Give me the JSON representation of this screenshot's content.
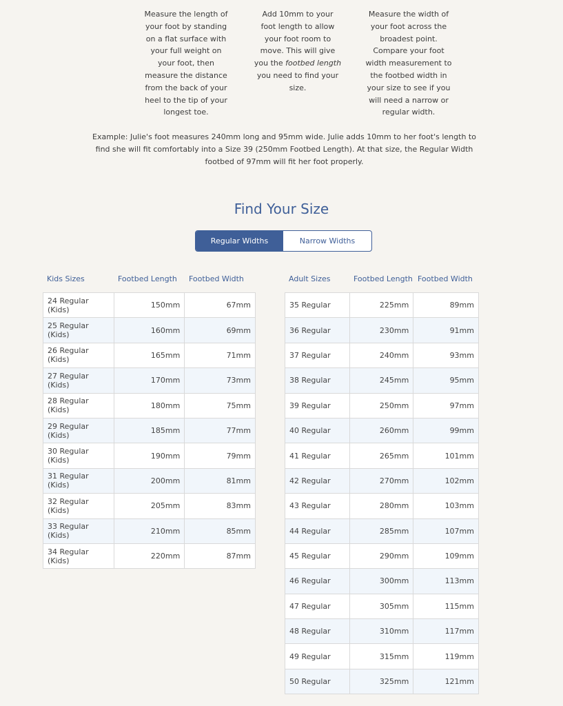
{
  "steps": [
    {
      "text": "Measure the length of your foot by standing on a flat surface with your full weight on your foot, then measure the distance from the back of your heel to the tip of your longest toe."
    },
    {
      "pre": "Add 10mm to your foot length to allow your foot room to move. This will give you the ",
      "em": "footbed length",
      "post": " you need to find your size."
    },
    {
      "text": "Measure the width of your foot across the broadest point. Compare your foot width measurement to the footbed width in your size to see if you will need a narrow or regular width."
    }
  ],
  "example": "Example: Julie's foot measures 240mm long and 95mm wide. Julie adds 10mm to her foot's length to find she will fit comfortably into a Size 39 (250mm Footbed Length). At that size, the Regular Width footbed of 97mm will fit her foot properly.",
  "title": "Find Your Size",
  "toggle": {
    "regular": "Regular Widths",
    "narrow": "Narrow Widths",
    "selected": "Regular Widths"
  },
  "accent": "#3f5f98",
  "kids": {
    "headers": [
      "Kids Sizes",
      "Footbed Length",
      "Footbed Width"
    ],
    "rows": [
      [
        "24 Regular (Kids)",
        "150mm",
        "67mm"
      ],
      [
        "25 Regular (Kids)",
        "160mm",
        "69mm"
      ],
      [
        "26 Regular (Kids)",
        "165mm",
        "71mm"
      ],
      [
        "27 Regular (Kids)",
        "170mm",
        "73mm"
      ],
      [
        "28 Regular (Kids)",
        "180mm",
        "75mm"
      ],
      [
        "29 Regular (Kids)",
        "185mm",
        "77mm"
      ],
      [
        "30 Regular (Kids)",
        "190mm",
        "79mm"
      ],
      [
        "31 Regular (Kids)",
        "200mm",
        "81mm"
      ],
      [
        "32 Regular (Kids)",
        "205mm",
        "83mm"
      ],
      [
        "33 Regular (Kids)",
        "210mm",
        "85mm"
      ],
      [
        "34 Regular (Kids)",
        "220mm",
        "87mm"
      ]
    ]
  },
  "adult": {
    "headers": [
      "Adult Sizes",
      "Footbed Length",
      "Footbed Width"
    ],
    "rows": [
      [
        "35 Regular",
        "225mm",
        "89mm"
      ],
      [
        "36 Regular",
        "230mm",
        "91mm"
      ],
      [
        "37 Regular",
        "240mm",
        "93mm"
      ],
      [
        "38 Regular",
        "245mm",
        "95mm"
      ],
      [
        "39 Regular",
        "250mm",
        "97mm"
      ],
      [
        "40 Regular",
        "260mm",
        "99mm"
      ],
      [
        "41 Regular",
        "265mm",
        "101mm"
      ],
      [
        "42 Regular",
        "270mm",
        "102mm"
      ],
      [
        "43 Regular",
        "280mm",
        "103mm"
      ],
      [
        "44 Regular",
        "285mm",
        "107mm"
      ],
      [
        "45 Regular",
        "290mm",
        "109mm"
      ],
      [
        "46 Regular",
        "300mm",
        "113mm"
      ],
      [
        "47 Regular",
        "305mm",
        "115mm"
      ],
      [
        "48 Regular",
        "310mm",
        "117mm"
      ],
      [
        "49 Regular",
        "315mm",
        "119mm"
      ],
      [
        "50 Regular",
        "325mm",
        "121mm"
      ]
    ]
  }
}
